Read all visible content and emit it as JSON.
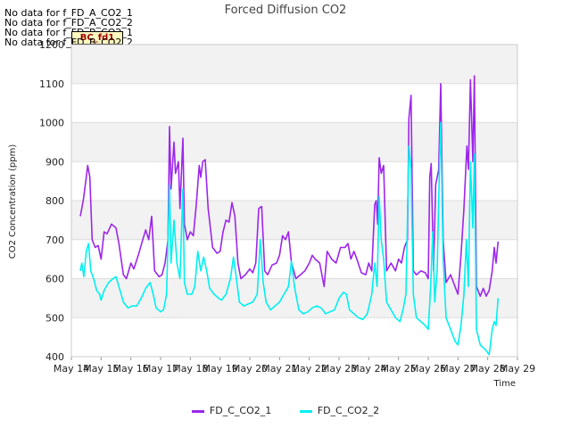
{
  "header": {
    "nodata_lines": [
      "No data for f_FD_A_CO2_1",
      "No data for f_FD_A_CO2_2",
      "No data for f_FD_B_CO2_1",
      "No data for f_FD_B_CO2_2"
    ],
    "badge": "BC_fd1"
  },
  "colors": {
    "plot_band": "#f2f2f2",
    "grid": "#dddddd",
    "series1": "#9d26ea",
    "series2": "#00f0f0"
  },
  "chart_data": {
    "type": "line",
    "title": "Forced Diffusion CO2",
    "xlabel": "Time",
    "ylabel": "CO2 Concentration (ppm)",
    "ylim": [
      400,
      1200
    ],
    "yticks": [
      400,
      500,
      600,
      700,
      800,
      900,
      1000,
      1100,
      1200
    ],
    "xlim": [
      0,
      15
    ],
    "xticks": [
      0,
      1,
      2,
      3,
      4,
      5,
      6,
      7,
      8,
      9,
      10,
      11,
      12,
      13,
      14,
      15
    ],
    "xtick_labels": [
      "May 14",
      "May 15",
      "May 16",
      "May 17",
      "May 18",
      "May 19",
      "May 20",
      "May 21",
      "May 22",
      "May 23",
      "May 24",
      "May 25",
      "May 26",
      "May 27",
      "May 28",
      "May 29"
    ],
    "grid": true,
    "legend_position": "bottom",
    "series": [
      {
        "name": "FD_C_CO2_1",
        "color": "#9d26ea",
        "points": [
          [
            0.3,
            760
          ],
          [
            0.4,
            800
          ],
          [
            0.5,
            860
          ],
          [
            0.55,
            890
          ],
          [
            0.62,
            860
          ],
          [
            0.7,
            700
          ],
          [
            0.8,
            680
          ],
          [
            0.9,
            685
          ],
          [
            1.0,
            650
          ],
          [
            1.1,
            720
          ],
          [
            1.2,
            715
          ],
          [
            1.35,
            740
          ],
          [
            1.5,
            730
          ],
          [
            1.6,
            690
          ],
          [
            1.75,
            610
          ],
          [
            1.85,
            600
          ],
          [
            2.0,
            640
          ],
          [
            2.1,
            625
          ],
          [
            2.25,
            660
          ],
          [
            2.4,
            700
          ],
          [
            2.5,
            725
          ],
          [
            2.6,
            700
          ],
          [
            2.7,
            760
          ],
          [
            2.8,
            620
          ],
          [
            2.95,
            605
          ],
          [
            3.05,
            610
          ],
          [
            3.15,
            640
          ],
          [
            3.25,
            700
          ],
          [
            3.3,
            990
          ],
          [
            3.35,
            830
          ],
          [
            3.45,
            950
          ],
          [
            3.5,
            870
          ],
          [
            3.6,
            900
          ],
          [
            3.65,
            780
          ],
          [
            3.75,
            960
          ],
          [
            3.8,
            740
          ],
          [
            3.9,
            700
          ],
          [
            4.0,
            720
          ],
          [
            4.1,
            710
          ],
          [
            4.2,
            790
          ],
          [
            4.3,
            890
          ],
          [
            4.35,
            860
          ],
          [
            4.42,
            900
          ],
          [
            4.5,
            905
          ],
          [
            4.6,
            780
          ],
          [
            4.75,
            680
          ],
          [
            4.9,
            665
          ],
          [
            5.0,
            670
          ],
          [
            5.1,
            720
          ],
          [
            5.2,
            750
          ],
          [
            5.3,
            745
          ],
          [
            5.4,
            795
          ],
          [
            5.5,
            760
          ],
          [
            5.6,
            640
          ],
          [
            5.7,
            600
          ],
          [
            5.85,
            610
          ],
          [
            6.0,
            625
          ],
          [
            6.1,
            615
          ],
          [
            6.2,
            640
          ],
          [
            6.3,
            780
          ],
          [
            6.4,
            785
          ],
          [
            6.5,
            620
          ],
          [
            6.6,
            610
          ],
          [
            6.75,
            635
          ],
          [
            6.9,
            640
          ],
          [
            7.0,
            660
          ],
          [
            7.1,
            710
          ],
          [
            7.2,
            700
          ],
          [
            7.3,
            720
          ],
          [
            7.4,
            640
          ],
          [
            7.55,
            600
          ],
          [
            7.7,
            610
          ],
          [
            7.85,
            620
          ],
          [
            8.0,
            640
          ],
          [
            8.1,
            660
          ],
          [
            8.2,
            650
          ],
          [
            8.35,
            640
          ],
          [
            8.5,
            580
          ],
          [
            8.6,
            670
          ],
          [
            8.75,
            650
          ],
          [
            8.9,
            640
          ],
          [
            9.05,
            680
          ],
          [
            9.2,
            680
          ],
          [
            9.3,
            690
          ],
          [
            9.4,
            650
          ],
          [
            9.5,
            670
          ],
          [
            9.6,
            650
          ],
          [
            9.75,
            615
          ],
          [
            9.9,
            610
          ],
          [
            10.0,
            640
          ],
          [
            10.1,
            620
          ],
          [
            10.2,
            790
          ],
          [
            10.25,
            800
          ],
          [
            10.3,
            740
          ],
          [
            10.35,
            910
          ],
          [
            10.42,
            870
          ],
          [
            10.5,
            890
          ],
          [
            10.6,
            620
          ],
          [
            10.75,
            640
          ],
          [
            10.9,
            620
          ],
          [
            11.0,
            650
          ],
          [
            11.1,
            640
          ],
          [
            11.2,
            680
          ],
          [
            11.3,
            700
          ],
          [
            11.35,
            1010
          ],
          [
            11.42,
            1070
          ],
          [
            11.5,
            620
          ],
          [
            11.6,
            610
          ],
          [
            11.75,
            620
          ],
          [
            11.9,
            615
          ],
          [
            12.0,
            600
          ],
          [
            12.05,
            860
          ],
          [
            12.1,
            895
          ],
          [
            12.18,
            620
          ],
          [
            12.25,
            840
          ],
          [
            12.35,
            880
          ],
          [
            12.42,
            1100
          ],
          [
            12.5,
            700
          ],
          [
            12.6,
            590
          ],
          [
            12.75,
            610
          ],
          [
            12.9,
            580
          ],
          [
            13.0,
            560
          ],
          [
            13.1,
            660
          ],
          [
            13.2,
            780
          ],
          [
            13.3,
            940
          ],
          [
            13.35,
            880
          ],
          [
            13.42,
            1110
          ],
          [
            13.5,
            900
          ],
          [
            13.55,
            1120
          ],
          [
            13.62,
            580
          ],
          [
            13.75,
            555
          ],
          [
            13.85,
            575
          ],
          [
            13.95,
            555
          ],
          [
            14.05,
            570
          ],
          [
            14.15,
            620
          ],
          [
            14.22,
            680
          ],
          [
            14.28,
            640
          ],
          [
            14.35,
            695
          ]
        ]
      },
      {
        "name": "FD_C_CO2_2",
        "color": "#00f0f0",
        "points": [
          [
            0.3,
            620
          ],
          [
            0.35,
            640
          ],
          [
            0.42,
            605
          ],
          [
            0.5,
            670
          ],
          [
            0.58,
            690
          ],
          [
            0.65,
            620
          ],
          [
            0.75,
            600
          ],
          [
            0.85,
            570
          ],
          [
            0.95,
            560
          ],
          [
            1.0,
            545
          ],
          [
            1.1,
            570
          ],
          [
            1.25,
            590
          ],
          [
            1.4,
            600
          ],
          [
            1.5,
            605
          ],
          [
            1.6,
            580
          ],
          [
            1.75,
            540
          ],
          [
            1.9,
            525
          ],
          [
            2.05,
            530
          ],
          [
            2.2,
            530
          ],
          [
            2.35,
            550
          ],
          [
            2.5,
            575
          ],
          [
            2.65,
            590
          ],
          [
            2.75,
            560
          ],
          [
            2.85,
            525
          ],
          [
            3.0,
            515
          ],
          [
            3.1,
            520
          ],
          [
            3.2,
            560
          ],
          [
            3.3,
            840
          ],
          [
            3.35,
            640
          ],
          [
            3.45,
            750
          ],
          [
            3.55,
            640
          ],
          [
            3.65,
            600
          ],
          [
            3.75,
            830
          ],
          [
            3.8,
            590
          ],
          [
            3.9,
            560
          ],
          [
            4.05,
            560
          ],
          [
            4.15,
            580
          ],
          [
            4.25,
            670
          ],
          [
            4.35,
            620
          ],
          [
            4.45,
            655
          ],
          [
            4.55,
            620
          ],
          [
            4.65,
            575
          ],
          [
            4.8,
            560
          ],
          [
            4.95,
            550
          ],
          [
            5.05,
            545
          ],
          [
            5.2,
            560
          ],
          [
            5.35,
            600
          ],
          [
            5.45,
            655
          ],
          [
            5.55,
            600
          ],
          [
            5.65,
            540
          ],
          [
            5.8,
            530
          ],
          [
            5.95,
            535
          ],
          [
            6.1,
            540
          ],
          [
            6.25,
            560
          ],
          [
            6.35,
            700
          ],
          [
            6.45,
            590
          ],
          [
            6.55,
            540
          ],
          [
            6.7,
            520
          ],
          [
            6.85,
            530
          ],
          [
            7.0,
            540
          ],
          [
            7.15,
            560
          ],
          [
            7.3,
            580
          ],
          [
            7.4,
            645
          ],
          [
            7.5,
            580
          ],
          [
            7.65,
            520
          ],
          [
            7.8,
            510
          ],
          [
            7.95,
            515
          ],
          [
            8.1,
            525
          ],
          [
            8.25,
            530
          ],
          [
            8.4,
            525
          ],
          [
            8.55,
            510
          ],
          [
            8.7,
            515
          ],
          [
            8.85,
            520
          ],
          [
            9.0,
            550
          ],
          [
            9.15,
            565
          ],
          [
            9.25,
            560
          ],
          [
            9.35,
            520
          ],
          [
            9.5,
            510
          ],
          [
            9.65,
            500
          ],
          [
            9.8,
            495
          ],
          [
            9.95,
            510
          ],
          [
            10.1,
            560
          ],
          [
            10.2,
            640
          ],
          [
            10.28,
            580
          ],
          [
            10.35,
            810
          ],
          [
            10.42,
            700
          ],
          [
            10.5,
            650
          ],
          [
            10.6,
            540
          ],
          [
            10.75,
            520
          ],
          [
            10.9,
            500
          ],
          [
            11.05,
            490
          ],
          [
            11.15,
            520
          ],
          [
            11.25,
            560
          ],
          [
            11.35,
            940
          ],
          [
            11.42,
            880
          ],
          [
            11.5,
            560
          ],
          [
            11.6,
            500
          ],
          [
            11.75,
            490
          ],
          [
            11.9,
            480
          ],
          [
            12.0,
            470
          ],
          [
            12.08,
            580
          ],
          [
            12.15,
            720
          ],
          [
            12.22,
            540
          ],
          [
            12.3,
            620
          ],
          [
            12.38,
            900
          ],
          [
            12.42,
            1000
          ],
          [
            12.5,
            650
          ],
          [
            12.6,
            500
          ],
          [
            12.75,
            470
          ],
          [
            12.9,
            440
          ],
          [
            13.0,
            430
          ],
          [
            13.1,
            480
          ],
          [
            13.2,
            560
          ],
          [
            13.28,
            700
          ],
          [
            13.35,
            580
          ],
          [
            13.42,
            900
          ],
          [
            13.5,
            730
          ],
          [
            13.55,
            920
          ],
          [
            13.62,
            470
          ],
          [
            13.75,
            430
          ],
          [
            13.9,
            420
          ],
          [
            14.0,
            410
          ],
          [
            14.05,
            405
          ],
          [
            14.15,
            470
          ],
          [
            14.22,
            490
          ],
          [
            14.28,
            480
          ],
          [
            14.35,
            550
          ]
        ]
      }
    ]
  }
}
